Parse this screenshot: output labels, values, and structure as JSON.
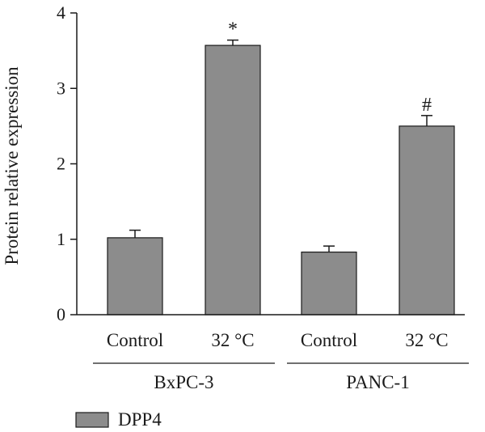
{
  "chart_data": {
    "type": "bar",
    "categories": [
      "Control",
      "32 °C",
      "Control",
      "32 °C"
    ],
    "groups": [
      {
        "label": "BxPC-3",
        "categories": [
          0,
          1
        ]
      },
      {
        "label": "PANC-1",
        "categories": [
          2,
          3
        ]
      }
    ],
    "series": [
      {
        "name": "DPP4",
        "values": [
          1.02,
          3.57,
          0.83,
          2.5
        ],
        "errors": [
          0.1,
          0.07,
          0.08,
          0.14
        ],
        "color": "#8c8c8c"
      }
    ],
    "annotations": [
      "",
      "*",
      "",
      "#"
    ],
    "ylabel": "Protein relative expression",
    "ylim": [
      0,
      4
    ],
    "yticks": [
      0,
      1,
      2,
      3,
      4
    ],
    "grid": false,
    "legend_position": "bottom-left"
  }
}
